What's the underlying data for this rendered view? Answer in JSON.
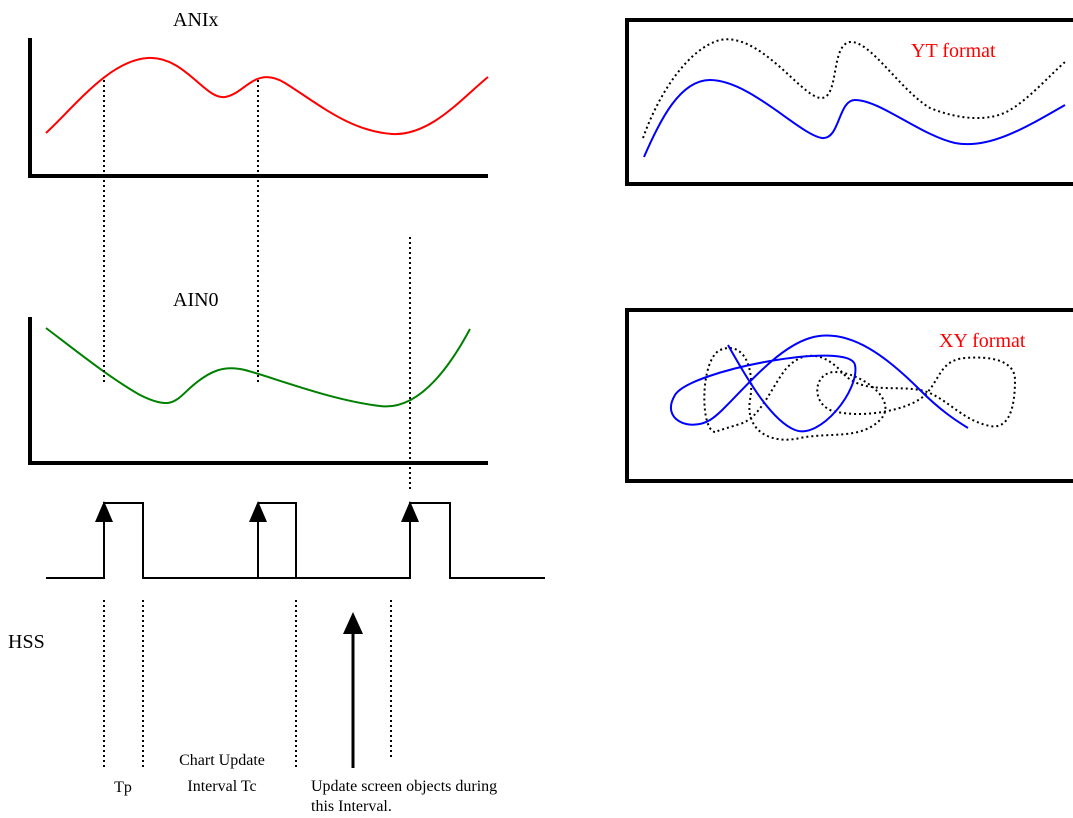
{
  "labels": {
    "anix": "ANIx",
    "ain0": "AIN0",
    "hss": "HSS",
    "tp": "Tp",
    "chart_update_line1": "Chart Update",
    "chart_update_line2": "Interval Tc",
    "update_screen_line1": "Update screen objects during",
    "update_screen_line2": "this Interval.",
    "yt_format": "YT format",
    "xy_format": "XY format"
  },
  "colors": {
    "anix_signal": "#ff0000",
    "ain0_signal": "#008000",
    "blue_trace": "#0000ff",
    "dotted_trace": "#000000",
    "format_label": "#ff0000"
  }
}
